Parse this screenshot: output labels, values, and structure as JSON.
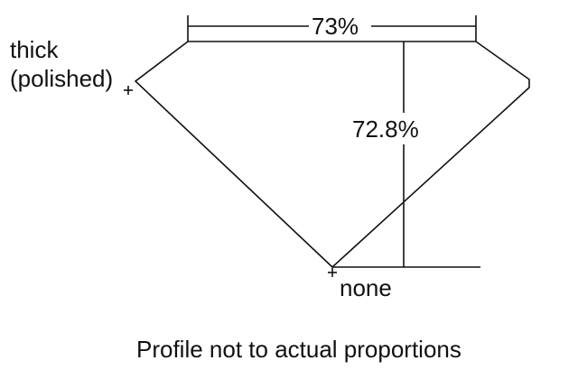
{
  "labels": {
    "girdle_line1": "thick",
    "girdle_line2": "(polished)",
    "table": "73%",
    "depth": "72.8%",
    "culet": "none"
  },
  "caption": "Profile not to actual proportions",
  "colors": {
    "line": "#111111",
    "background": "#ffffff"
  }
}
